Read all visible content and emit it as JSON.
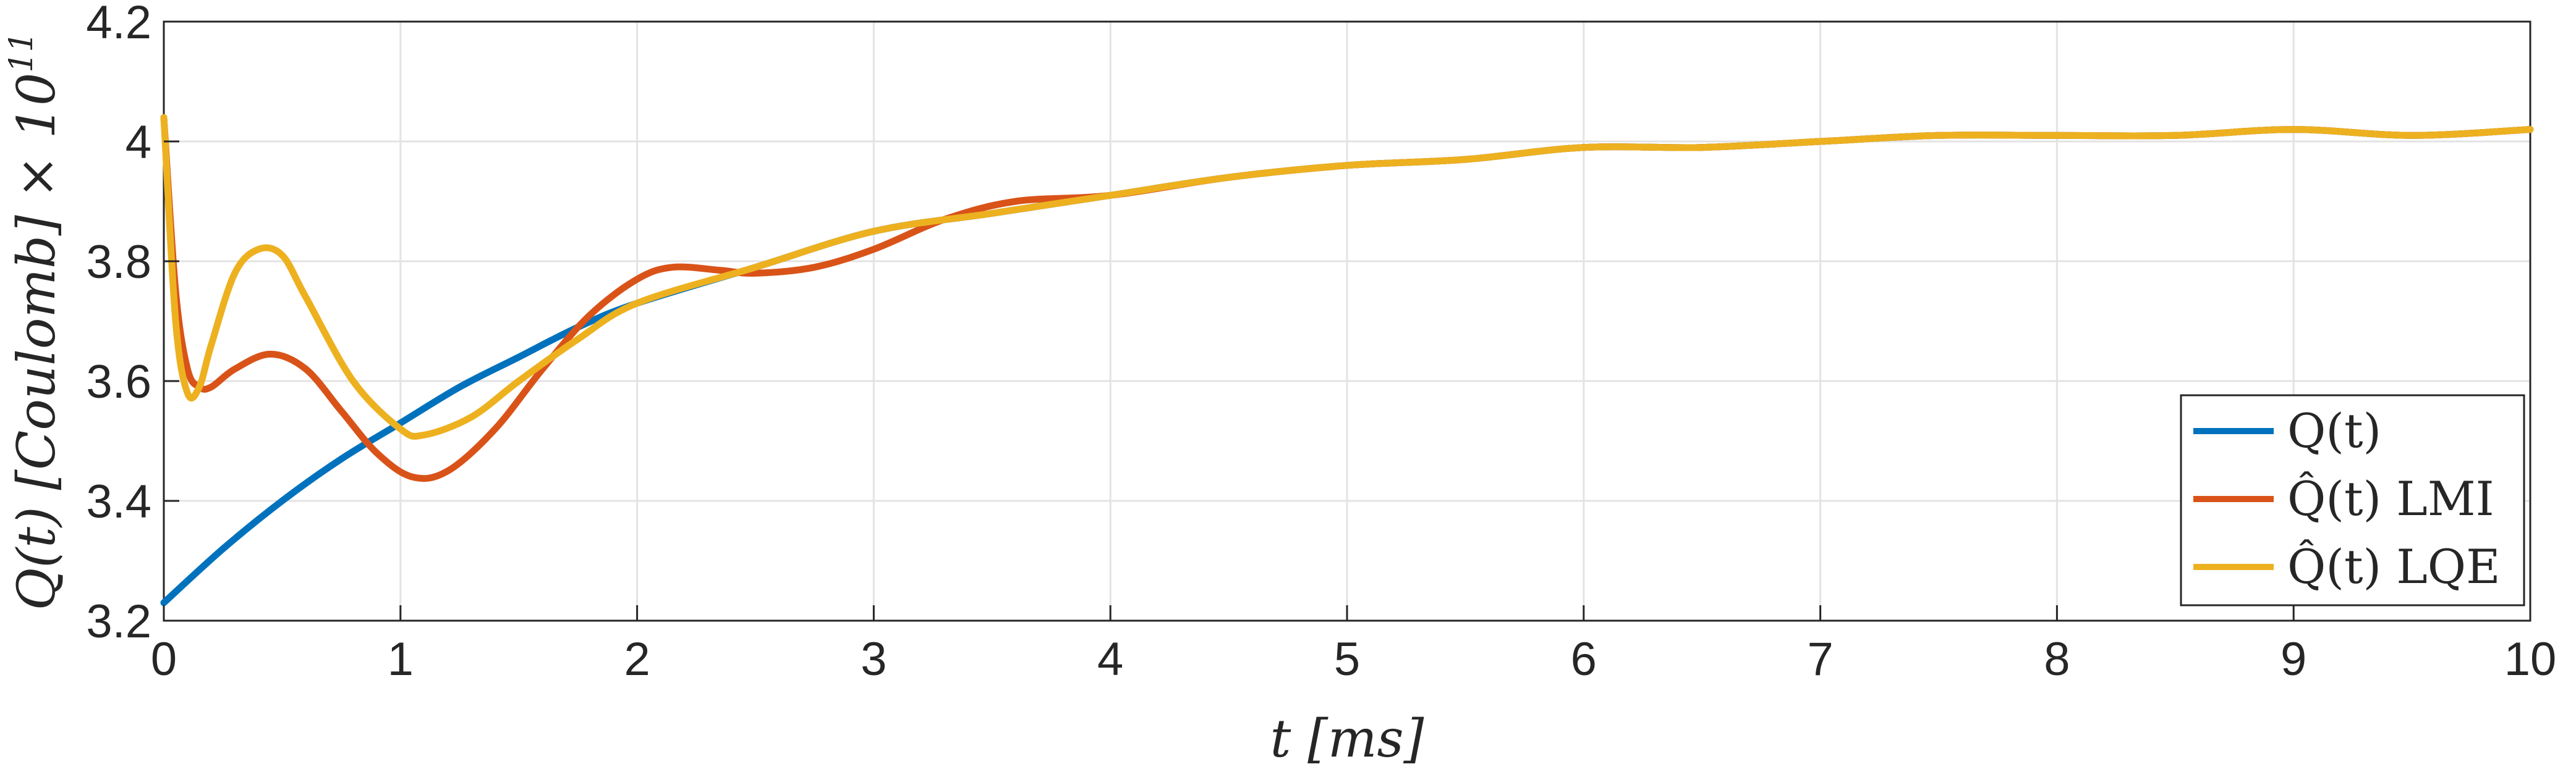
{
  "chart_data": {
    "type": "line",
    "xlabel": "t [ms]",
    "ylabel": "Q(t) [Coulomb] × 10",
    "ylabel_exponent": "11",
    "xlim": [
      0,
      10
    ],
    "ylim": [
      3.2,
      4.2
    ],
    "xticks": [
      "0",
      "1",
      "2",
      "3",
      "4",
      "5",
      "6",
      "7",
      "8",
      "9",
      "10"
    ],
    "yticks": [
      "3.2",
      "3.4",
      "3.6",
      "3.8",
      "4",
      "4.2"
    ],
    "xtick_values": [
      0,
      1,
      2,
      3,
      4,
      5,
      6,
      7,
      8,
      9,
      10
    ],
    "ytick_values": [
      3.2,
      3.4,
      3.6,
      3.8,
      4.0,
      4.2
    ],
    "grid": true,
    "legend_position": "bottom-right",
    "series": [
      {
        "name": "Q(t)",
        "color": "#0072BD",
        "x": [
          0,
          0.25,
          0.5,
          0.75,
          1.0,
          1.25,
          1.5,
          1.75,
          2.0,
          2.5,
          3.0,
          3.5,
          4.0,
          4.5,
          5.0,
          5.5,
          6.0,
          6.5,
          7.0,
          7.5,
          8.0,
          8.5,
          9.0,
          9.5,
          10.0
        ],
        "y": [
          3.23,
          3.32,
          3.4,
          3.47,
          3.53,
          3.59,
          3.64,
          3.69,
          3.73,
          3.79,
          3.85,
          3.88,
          3.91,
          3.94,
          3.96,
          3.97,
          3.99,
          3.99,
          4.0,
          4.01,
          4.01,
          4.01,
          4.02,
          4.01,
          4.02
        ]
      },
      {
        "name": "Q̂(t) LMI",
        "color": "#D95319",
        "x": [
          0,
          0.05,
          0.1,
          0.15,
          0.2,
          0.3,
          0.45,
          0.6,
          0.75,
          0.9,
          1.05,
          1.2,
          1.4,
          1.6,
          1.8,
          2.0,
          2.15,
          2.35,
          2.5,
          2.75,
          3.0,
          3.3,
          3.6,
          4.0,
          4.5,
          5.0,
          5.5,
          6.0,
          6.5,
          7.0,
          7.5,
          8.0,
          8.5,
          9.0,
          9.5,
          10.0
        ],
        "y": [
          4.04,
          3.75,
          3.62,
          3.59,
          3.59,
          3.62,
          3.645,
          3.62,
          3.55,
          3.48,
          3.44,
          3.45,
          3.52,
          3.62,
          3.71,
          3.77,
          3.79,
          3.785,
          3.78,
          3.79,
          3.82,
          3.87,
          3.9,
          3.91,
          3.94,
          3.96,
          3.97,
          3.99,
          3.99,
          4.0,
          4.01,
          4.01,
          4.01,
          4.02,
          4.01,
          4.02
        ]
      },
      {
        "name": "Q̂(t) LQE",
        "color": "#EDB120",
        "x": [
          0,
          0.05,
          0.1,
          0.15,
          0.2,
          0.3,
          0.4,
          0.5,
          0.6,
          0.8,
          1.0,
          1.1,
          1.3,
          1.5,
          1.75,
          2.0,
          2.5,
          3.0,
          3.5,
          4.0,
          4.5,
          5.0,
          5.5,
          6.0,
          6.5,
          7.0,
          7.5,
          8.0,
          8.5,
          9.0,
          9.5,
          10.0
        ],
        "y": [
          4.04,
          3.7,
          3.58,
          3.59,
          3.66,
          3.78,
          3.82,
          3.81,
          3.74,
          3.6,
          3.52,
          3.51,
          3.54,
          3.6,
          3.67,
          3.73,
          3.79,
          3.85,
          3.88,
          3.91,
          3.94,
          3.96,
          3.97,
          3.99,
          3.99,
          4.0,
          4.01,
          4.01,
          4.01,
          4.02,
          4.01,
          4.02
        ]
      }
    ],
    "legend": [
      {
        "label": "Q(t)"
      },
      {
        "label": "Q̂(t) LMI"
      },
      {
        "label": "Q̂(t) LQE"
      }
    ]
  }
}
